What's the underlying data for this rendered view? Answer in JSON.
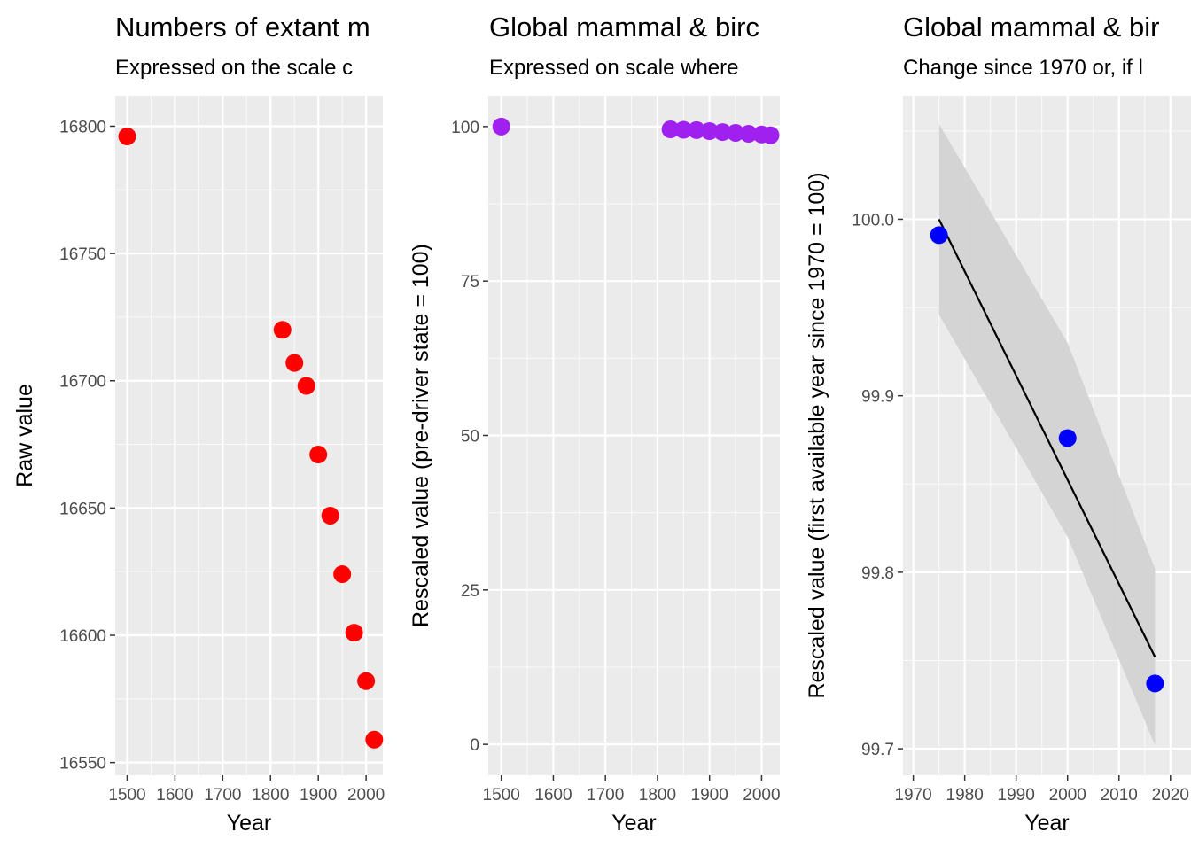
{
  "chart_data": [
    {
      "type": "scatter",
      "title": "Numbers of extant m",
      "subtitle": "Expressed on the scale c",
      "xlabel": "Year",
      "ylabel": "Raw value",
      "xlim": [
        1475,
        2035
      ],
      "ylim": [
        16545,
        16812
      ],
      "xticks": [
        1500,
        1600,
        1700,
        1800,
        1900,
        2000
      ],
      "xtick_labels": [
        "1500",
        "1600",
        "1700",
        "1800",
        "1900",
        "2000"
      ],
      "yticks": [
        16550,
        16600,
        16650,
        16700,
        16750,
        16800
      ],
      "ytick_labels": [
        "16550",
        "16600",
        "16650",
        "16700",
        "16750",
        "16800"
      ],
      "point_color": "#ff0000",
      "points": [
        {
          "x": 1500,
          "y": 16796
        },
        {
          "x": 1825,
          "y": 16720
        },
        {
          "x": 1850,
          "y": 16707
        },
        {
          "x": 1875,
          "y": 16698
        },
        {
          "x": 1900,
          "y": 16671
        },
        {
          "x": 1925,
          "y": 16647
        },
        {
          "x": 1950,
          "y": 16624
        },
        {
          "x": 1975,
          "y": 16601
        },
        {
          "x": 2000,
          "y": 16582
        },
        {
          "x": 2017,
          "y": 16559
        }
      ],
      "trend": null,
      "ribbon": null,
      "grid": true
    },
    {
      "type": "scatter",
      "title": "Global mammal & birc",
      "subtitle": "Expressed on scale where",
      "xlabel": "Year",
      "ylabel": "Rescaled value (pre-driver state = 100)",
      "xlim": [
        1475,
        2035
      ],
      "ylim": [
        -5,
        105
      ],
      "xticks": [
        1500,
        1600,
        1700,
        1800,
        1900,
        2000
      ],
      "xtick_labels": [
        "1500",
        "1600",
        "1700",
        "1800",
        "1900",
        "2000"
      ],
      "yticks": [
        0,
        25,
        50,
        75,
        100
      ],
      "ytick_labels": [
        "0",
        "25",
        "50",
        "75",
        "100"
      ],
      "point_color": "#a020f0",
      "points": [
        {
          "x": 1500,
          "y": 100
        },
        {
          "x": 1825,
          "y": 99.55
        },
        {
          "x": 1850,
          "y": 99.47
        },
        {
          "x": 1875,
          "y": 99.42
        },
        {
          "x": 1900,
          "y": 99.26
        },
        {
          "x": 1925,
          "y": 99.11
        },
        {
          "x": 1950,
          "y": 98.98
        },
        {
          "x": 1975,
          "y": 98.84
        },
        {
          "x": 2000,
          "y": 98.73
        },
        {
          "x": 2017,
          "y": 98.6
        }
      ],
      "trend": {
        "x": [
          1975,
          2017
        ],
        "y": [
          98.85,
          98.5
        ]
      },
      "ribbon": null,
      "grid": true
    },
    {
      "type": "scatter",
      "title": "Global mammal & bir",
      "subtitle": "Change since 1970 or, if l",
      "xlabel": "Year",
      "ylabel": "Rescaled value (first available year since 1970 = 100)",
      "xlim": [
        1968,
        2024
      ],
      "ylim": [
        99.685,
        100.07
      ],
      "xticks": [
        1970,
        1980,
        1990,
        2000,
        2010,
        2020
      ],
      "xtick_labels": [
        "1970",
        "1980",
        "1990",
        "2000",
        "2010",
        "2020"
      ],
      "yticks": [
        99.7,
        99.8,
        99.9,
        100.0
      ],
      "ytick_labels": [
        "99.7",
        "99.8",
        "99.9",
        "100.0"
      ],
      "point_color": "#0000ff",
      "points": [
        {
          "x": 1975,
          "y": 99.991
        },
        {
          "x": 2000,
          "y": 99.876
        },
        {
          "x": 2017,
          "y": 99.737
        }
      ],
      "trend": {
        "x": [
          1975,
          2017
        ],
        "y": [
          100.0,
          99.752
        ]
      },
      "ribbon": {
        "x": [
          1975,
          2000,
          2017
        ],
        "upper": [
          100.054,
          99.93,
          99.802
        ],
        "lower": [
          99.946,
          99.82,
          99.702
        ]
      },
      "grid": true
    }
  ]
}
